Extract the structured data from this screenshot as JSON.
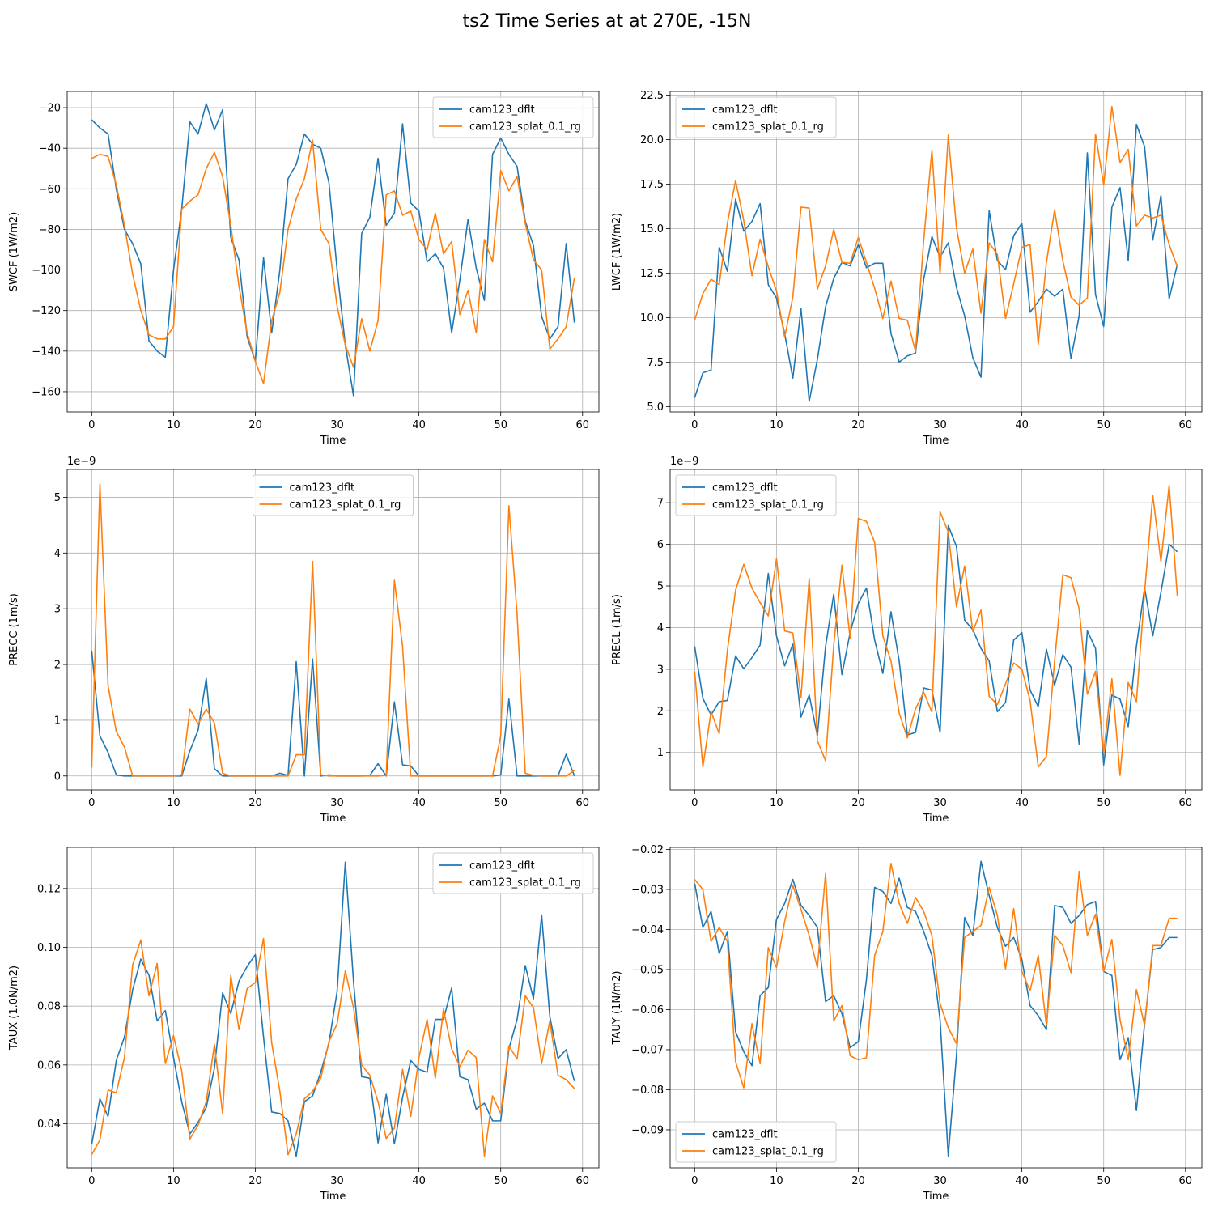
{
  "figure_title": "ts2 Time Series at at 270E, -15N",
  "colors": {
    "dflt": "#1f77b4",
    "splat": "#ff7f0e",
    "grid": "#b0b0b0",
    "axes": "#000000"
  },
  "chart_data": [
    {
      "type": "line",
      "ylabel": "SWCF (1W/m2)",
      "xlabel": "Time",
      "xlim": [
        -3,
        62
      ],
      "ylim": [
        -170,
        -12
      ],
      "xticks": [
        0,
        10,
        20,
        30,
        40,
        50,
        60
      ],
      "yticks": [
        -160,
        -140,
        -120,
        -100,
        -80,
        -60,
        -40,
        -20
      ],
      "ytick_labels": [
        "−160",
        "−140",
        "−120",
        "−100",
        "−80",
        "−60",
        "−40",
        "−20"
      ],
      "offset_text": "",
      "legend": "upper right",
      "grid": true,
      "series": [
        {
          "name": "cam123_dflt",
          "color": "#1f77b4",
          "values": [
            -26,
            -30,
            -33,
            -60,
            -80,
            -87,
            -97,
            -135,
            -140,
            -143,
            -100,
            -70,
            -27,
            -33,
            -18,
            -31,
            -21,
            -84,
            -95,
            -133,
            -145,
            -94,
            -131,
            -100,
            -55,
            -48,
            -33,
            -38,
            -40,
            -57,
            -100,
            -137,
            -162,
            -82,
            -74,
            -45,
            -78,
            -72,
            -28,
            -67,
            -71,
            -96,
            -92,
            -99,
            -131,
            -105,
            -75,
            -99,
            -115,
            -43,
            -35,
            -43,
            -49,
            -76,
            -88,
            -123,
            -134,
            -128,
            -87,
            -126
          ]
        },
        {
          "name": "cam123_splat_0.1_rg",
          "color": "#ff7f0e",
          "values": [
            -45,
            -43,
            -44,
            -58,
            -78,
            -102,
            -120,
            -132,
            -134,
            -134,
            -128,
            -70,
            -66,
            -63,
            -50,
            -42,
            -54,
            -78,
            -108,
            -131,
            -145,
            -156,
            -125,
            -111,
            -80,
            -65,
            -55,
            -36,
            -80,
            -87,
            -118,
            -137,
            -148,
            -124,
            -140,
            -125,
            -63,
            -61,
            -73,
            -71,
            -85,
            -90,
            -72,
            -92,
            -86,
            -122,
            -110,
            -131,
            -85,
            -96,
            -51,
            -61,
            -54,
            -77,
            -95,
            -100,
            -139,
            -134,
            -128,
            -104
          ]
        }
      ]
    },
    {
      "type": "line",
      "ylabel": "LWCF (1W/m2)",
      "xlabel": "Time",
      "xlim": [
        -3,
        62
      ],
      "ylim": [
        4.7,
        22.7
      ],
      "xticks": [
        0,
        10,
        20,
        30,
        40,
        50,
        60
      ],
      "yticks": [
        5.0,
        7.5,
        10.0,
        12.5,
        15.0,
        17.5,
        20.0,
        22.5
      ],
      "ytick_labels": [
        "5.0",
        "7.5",
        "10.0",
        "12.5",
        "15.0",
        "17.5",
        "20.0",
        "22.5"
      ],
      "offset_text": "",
      "legend": "upper left",
      "grid": true,
      "series": [
        {
          "name": "cam123_dflt",
          "color": "#1f77b4",
          "values": [
            5.5,
            6.9,
            7.05,
            13.95,
            12.6,
            16.65,
            14.85,
            15.4,
            16.4,
            11.85,
            11.1,
            9.1,
            6.6,
            10.5,
            5.3,
            7.65,
            10.6,
            12.2,
            13.1,
            12.9,
            14.1,
            12.8,
            13.05,
            13.05,
            9.1,
            7.5,
            7.85,
            8.0,
            12.15,
            14.55,
            13.4,
            14.2,
            11.7,
            10.1,
            7.75,
            6.65,
            16.0,
            13.2,
            12.7,
            14.6,
            15.3,
            10.3,
            10.9,
            11.6,
            11.2,
            11.6,
            7.7,
            10.1,
            19.25,
            11.3,
            9.5,
            16.2,
            17.3,
            13.2,
            20.85,
            19.6,
            14.35,
            16.85,
            11.05,
            13.0
          ]
        },
        {
          "name": "cam123_splat_0.1_rg",
          "color": "#ff7f0e",
          "values": [
            9.85,
            11.35,
            12.15,
            11.85,
            15.3,
            17.7,
            15.45,
            12.35,
            14.4,
            12.85,
            11.5,
            8.9,
            11.15,
            16.2,
            16.15,
            11.6,
            12.9,
            14.95,
            13.1,
            13.05,
            14.5,
            13.1,
            11.65,
            9.95,
            12.05,
            9.95,
            9.85,
            8.1,
            14.35,
            19.4,
            12.45,
            20.25,
            15.05,
            12.5,
            13.85,
            10.25,
            14.2,
            13.55,
            9.95,
            11.9,
            13.95,
            14.1,
            8.5,
            13.1,
            16.05,
            13.2,
            11.15,
            10.7,
            11.1,
            20.3,
            17.45,
            21.85,
            18.7,
            19.45,
            15.15,
            15.75,
            15.6,
            15.75,
            14.1,
            12.85
          ]
        }
      ]
    },
    {
      "type": "line",
      "ylabel": "PRECC (1m/s)",
      "xlabel": "Time",
      "xlim": [
        -3,
        62
      ],
      "ylim": [
        -0.25,
        5.5
      ],
      "xticks": [
        0,
        10,
        20,
        30,
        40,
        50,
        60
      ],
      "yticks": [
        0,
        1,
        2,
        3,
        4,
        5
      ],
      "ytick_labels": [
        "0",
        "1",
        "2",
        "3",
        "4",
        "5"
      ],
      "offset_text": "1e−9",
      "legend": "upper center",
      "grid": true,
      "series": [
        {
          "name": "cam123_dflt",
          "color": "#1f77b4",
          "values": [
            2.25,
            0.72,
            0.42,
            0.02,
            0,
            0,
            0,
            0,
            0,
            0,
            0,
            0,
            0.45,
            0.82,
            1.75,
            0.13,
            0,
            0,
            0,
            0,
            0,
            0,
            0,
            0.05,
            0.01,
            2.05,
            0,
            2.1,
            0,
            0.02,
            0,
            0,
            0,
            0,
            0.01,
            0.22,
            0,
            1.33,
            0.2,
            0.18,
            0,
            0,
            0,
            0,
            0,
            0,
            0,
            0,
            0,
            0,
            0.02,
            1.38,
            0,
            0,
            0,
            0,
            0,
            0,
            0.39,
            0
          ]
        },
        {
          "name": "cam123_splat_0.1_rg",
          "color": "#ff7f0e",
          "values": [
            0.15,
            5.24,
            1.62,
            0.8,
            0.52,
            0,
            0,
            0,
            0,
            0,
            0,
            0.02,
            1.2,
            0.93,
            1.2,
            0.95,
            0.05,
            0,
            0,
            0,
            0,
            0,
            0,
            0,
            0,
            0.38,
            0.38,
            3.85,
            0.02,
            0,
            0,
            0,
            0,
            0,
            0,
            0,
            0.01,
            3.51,
            2.32,
            0,
            0,
            0,
            0,
            0,
            0,
            0,
            0,
            0,
            0,
            0,
            0.72,
            4.85,
            2.9,
            0.05,
            0.01,
            0,
            0,
            0,
            0,
            0.1
          ]
        }
      ]
    },
    {
      "type": "line",
      "ylabel": "PRECL (1m/s)",
      "xlabel": "Time",
      "xlim": [
        -3,
        62
      ],
      "ylim": [
        0.1,
        7.8
      ],
      "xticks": [
        0,
        10,
        20,
        30,
        40,
        50,
        60
      ],
      "yticks": [
        1,
        2,
        3,
        4,
        5,
        6,
        7
      ],
      "ytick_labels": [
        "1",
        "2",
        "3",
        "4",
        "5",
        "6",
        "7"
      ],
      "offset_text": "1e−9",
      "legend": "upper left",
      "grid": true,
      "series": [
        {
          "name": "cam123_dflt",
          "color": "#1f77b4",
          "values": [
            3.55,
            2.3,
            1.9,
            2.22,
            2.25,
            3.32,
            3.01,
            3.28,
            3.58,
            5.3,
            3.8,
            3.08,
            3.6,
            1.85,
            2.38,
            1.4,
            3.55,
            4.8,
            2.87,
            3.88,
            4.58,
            4.95,
            3.7,
            2.9,
            4.38,
            3.2,
            1.42,
            1.48,
            2.55,
            2.5,
            1.48,
            6.45,
            5.95,
            4.18,
            3.95,
            3.5,
            3.2,
            1.98,
            2.2,
            3.7,
            3.88,
            2.5,
            2.1,
            3.48,
            2.62,
            3.35,
            3.05,
            1.2,
            3.92,
            3.5,
            0.7,
            2.38,
            2.28,
            1.62,
            3.55,
            4.95,
            3.8,
            4.85,
            6.0,
            5.82
          ]
        },
        {
          "name": "cam123_splat_0.1_rg",
          "color": "#ff7f0e",
          "values": [
            2.95,
            0.65,
            1.98,
            1.45,
            3.45,
            4.9,
            5.52,
            4.95,
            4.6,
            4.28,
            5.65,
            3.92,
            3.87,
            2.32,
            5.18,
            1.28,
            0.8,
            3.58,
            5.5,
            3.75,
            6.62,
            6.55,
            6.05,
            3.8,
            3.2,
            1.95,
            1.35,
            2.05,
            2.45,
            1.97,
            6.78,
            6.3,
            4.5,
            5.48,
            3.9,
            4.42,
            2.35,
            2.15,
            2.65,
            3.15,
            3.0,
            2.25,
            0.65,
            0.9,
            3.2,
            5.27,
            5.2,
            4.45,
            2.4,
            2.95,
            1.0,
            2.77,
            0.45,
            2.68,
            2.22,
            4.85,
            7.18,
            5.58,
            7.42,
            4.75
          ]
        }
      ]
    },
    {
      "type": "line",
      "ylabel": "TAUX (1.0N/m2)",
      "xlabel": "Time",
      "xlim": [
        -3,
        62
      ],
      "ylim": [
        0.025,
        0.134
      ],
      "xticks": [
        0,
        10,
        20,
        30,
        40,
        50,
        60
      ],
      "yticks": [
        0.04,
        0.06,
        0.08,
        0.1,
        0.12
      ],
      "ytick_labels": [
        "0.04",
        "0.06",
        "0.08",
        "0.10",
        "0.12"
      ],
      "offset_text": "",
      "legend": "upper right",
      "grid": true,
      "series": [
        {
          "name": "cam123_dflt",
          "color": "#1f77b4",
          "values": [
            0.033,
            0.0485,
            0.0425,
            0.0615,
            0.0695,
            0.0855,
            0.096,
            0.0905,
            0.075,
            0.0785,
            0.0625,
            0.0475,
            0.0365,
            0.0405,
            0.0455,
            0.059,
            0.0845,
            0.0775,
            0.0885,
            0.0935,
            0.0975,
            0.0695,
            0.044,
            0.0435,
            0.041,
            0.029,
            0.0475,
            0.0495,
            0.0575,
            0.0675,
            0.085,
            0.129,
            0.0885,
            0.056,
            0.0555,
            0.0335,
            0.05,
            0.0332,
            0.049,
            0.0615,
            0.0585,
            0.0575,
            0.0755,
            0.0755,
            0.0862,
            0.056,
            0.055,
            0.045,
            0.047,
            0.041,
            0.041,
            0.0655,
            0.0755,
            0.0938,
            0.0825,
            0.111,
            0.0765,
            0.0622,
            0.0652,
            0.0545
          ]
        },
        {
          "name": "cam123_splat_0.1_rg",
          "color": "#ff7f0e",
          "values": [
            0.0295,
            0.0345,
            0.0515,
            0.0505,
            0.0625,
            0.094,
            0.1025,
            0.0835,
            0.0945,
            0.0605,
            0.07,
            0.058,
            0.0348,
            0.0395,
            0.0475,
            0.067,
            0.0435,
            0.0905,
            0.072,
            0.086,
            0.088,
            0.103,
            0.0675,
            0.051,
            0.0295,
            0.0365,
            0.0485,
            0.051,
            0.0555,
            0.068,
            0.074,
            0.092,
            0.0795,
            0.06,
            0.0565,
            0.0475,
            0.035,
            0.0385,
            0.0585,
            0.0425,
            0.0625,
            0.0755,
            0.0555,
            0.079,
            0.0655,
            0.0595,
            0.065,
            0.0625,
            0.029,
            0.0495,
            0.0435,
            0.0665,
            0.062,
            0.0835,
            0.0795,
            0.0605,
            0.075,
            0.0565,
            0.055,
            0.052
          ]
        }
      ]
    },
    {
      "type": "line",
      "ylabel": "TAUY (1N/m2)",
      "xlabel": "Time",
      "xlim": [
        -3,
        62
      ],
      "ylim": [
        -0.0995,
        -0.0195
      ],
      "xticks": [
        0,
        10,
        20,
        30,
        40,
        50,
        60
      ],
      "yticks": [
        -0.09,
        -0.08,
        -0.07,
        -0.06,
        -0.05,
        -0.04,
        -0.03,
        -0.02
      ],
      "ytick_labels": [
        "−0.09",
        "−0.08",
        "−0.07",
        "−0.06",
        "−0.05",
        "−0.04",
        "−0.03",
        "−0.02"
      ],
      "offset_text": "",
      "legend": "lower left",
      "grid": true,
      "series": [
        {
          "name": "cam123_dflt",
          "color": "#1f77b4",
          "values": [
            -0.0285,
            -0.0395,
            -0.0355,
            -0.046,
            -0.0405,
            -0.0655,
            -0.0705,
            -0.074,
            -0.0565,
            -0.0545,
            -0.0375,
            -0.0335,
            -0.0275,
            -0.034,
            -0.0365,
            -0.0395,
            -0.058,
            -0.0565,
            -0.061,
            -0.0695,
            -0.068,
            -0.0525,
            -0.0295,
            -0.0305,
            -0.0335,
            -0.0272,
            -0.0345,
            -0.0355,
            -0.0405,
            -0.0465,
            -0.0625,
            -0.0965,
            -0.0715,
            -0.037,
            -0.0415,
            -0.023,
            -0.0315,
            -0.0395,
            -0.0442,
            -0.042,
            -0.0475,
            -0.059,
            -0.0615,
            -0.065,
            -0.034,
            -0.0345,
            -0.0385,
            -0.0365,
            -0.0338,
            -0.033,
            -0.0505,
            -0.0515,
            -0.0725,
            -0.067,
            -0.0852,
            -0.0635,
            -0.045,
            -0.0445,
            -0.042,
            -0.042
          ]
        },
        {
          "name": "cam123_splat_0.1_rg",
          "color": "#ff7f0e",
          "values": [
            -0.0275,
            -0.03,
            -0.043,
            -0.0395,
            -0.043,
            -0.073,
            -0.0795,
            -0.0635,
            -0.0735,
            -0.0445,
            -0.0495,
            -0.038,
            -0.029,
            -0.035,
            -0.0415,
            -0.0495,
            -0.026,
            -0.0628,
            -0.059,
            -0.0715,
            -0.0725,
            -0.072,
            -0.0465,
            -0.0405,
            -0.0235,
            -0.0335,
            -0.0385,
            -0.032,
            -0.0355,
            -0.0415,
            -0.0585,
            -0.0645,
            -0.0685,
            -0.042,
            -0.0405,
            -0.039,
            -0.0295,
            -0.0365,
            -0.0498,
            -0.0348,
            -0.0505,
            -0.0553,
            -0.0465,
            -0.064,
            -0.0415,
            -0.044,
            -0.0508,
            -0.0255,
            -0.0415,
            -0.0362,
            -0.0505,
            -0.0425,
            -0.0625,
            -0.0725,
            -0.055,
            -0.064,
            -0.044,
            -0.044,
            -0.0372,
            -0.0372
          ]
        }
      ]
    }
  ]
}
